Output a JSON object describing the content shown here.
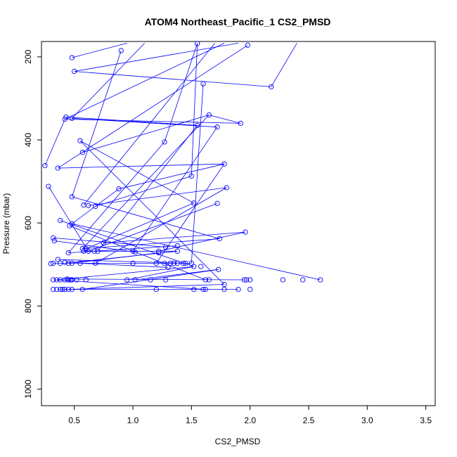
{
  "chart_data": {
    "type": "line",
    "title": "ATOM4 Northeast_Pacific_1 CS2_PMSD",
    "xlabel": "CS2_PMSD",
    "ylabel": "Pressure (mbar)",
    "xlim": [
      0.22,
      3.58
    ],
    "ylim": [
      1040,
      163
    ],
    "y_reversed": true,
    "x_ticks": [
      0.5,
      1.0,
      1.5,
      2.0,
      2.5,
      3.0,
      3.5
    ],
    "x_tick_labels": [
      "0.5",
      "1.0",
      "1.5",
      "2.0",
      "2.5",
      "3.0",
      "3.5"
    ],
    "y_ticks": [
      200,
      400,
      600,
      800,
      1000
    ],
    "y_tick_labels": [
      "200",
      "400",
      "600",
      "800",
      "1000"
    ],
    "grid": false,
    "legend": "none",
    "marker": "open-circle",
    "color": "#0000ff",
    "series": [
      {
        "name": "",
        "points": [
          [
            0.48,
            760
          ],
          [
            1.2,
            760
          ],
          [
            1.52,
            760
          ],
          [
            1.6,
            760
          ],
          [
            1.62,
            760
          ],
          [
            1.78,
            760
          ],
          [
            1.9,
            760
          ],
          [
            2.0,
            760
          ],
          [
            0.38,
            760
          ],
          [
            0.42,
            760
          ],
          [
            0.45,
            760
          ],
          [
            0.57,
            760
          ],
          [
            0.32,
            760
          ],
          [
            0.35,
            760
          ],
          [
            0.4,
            760
          ],
          [
            0.44,
            735
          ],
          [
            0.48,
            737
          ],
          [
            0.52,
            737
          ],
          [
            0.6,
            737
          ],
          [
            0.95,
            737
          ],
          [
            1.02,
            737
          ],
          [
            1.15,
            737
          ],
          [
            1.28,
            737
          ],
          [
            1.62,
            737
          ],
          [
            1.65,
            737
          ],
          [
            1.95,
            737
          ],
          [
            1.97,
            737
          ],
          [
            2.0,
            737
          ],
          [
            2.28,
            737
          ],
          [
            2.45,
            737
          ],
          [
            2.6,
            737
          ],
          [
            0.32,
            737
          ],
          [
            0.35,
            737
          ],
          [
            0.38,
            737
          ],
          [
            0.42,
            737
          ],
          [
            0.45,
            737
          ],
          [
            1.78,
            748
          ],
          [
            1.73,
            712
          ],
          [
            1.52,
            705
          ],
          [
            1.58,
            705
          ],
          [
            1.3,
            707
          ],
          [
            0.47,
            737
          ],
          [
            0.32,
            697
          ],
          [
            0.38,
            697
          ],
          [
            0.42,
            695
          ],
          [
            0.45,
            697
          ],
          [
            0.48,
            697
          ],
          [
            0.55,
            697
          ],
          [
            0.68,
            697
          ],
          [
            1.0,
            697
          ],
          [
            1.2,
            697
          ],
          [
            1.27,
            697
          ],
          [
            1.32,
            697
          ],
          [
            1.35,
            697
          ],
          [
            1.38,
            697
          ],
          [
            1.43,
            697
          ],
          [
            1.45,
            697
          ],
          [
            1.5,
            697
          ],
          [
            0.36,
            688
          ],
          [
            0.3,
            698
          ],
          [
            0.45,
            672
          ],
          [
            0.58,
            668
          ],
          [
            0.62,
            668
          ],
          [
            0.67,
            668
          ],
          [
            0.7,
            668
          ],
          [
            1.0,
            668
          ],
          [
            1.02,
            670
          ],
          [
            1.22,
            668
          ],
          [
            1.38,
            668
          ],
          [
            0.57,
            662
          ],
          [
            0.6,
            662
          ],
          [
            1.28,
            658
          ],
          [
            1.38,
            655
          ],
          [
            1.22,
            672
          ],
          [
            0.33,
            643
          ],
          [
            0.32,
            636
          ],
          [
            0.75,
            648
          ],
          [
            0.62,
            558
          ],
          [
            1.74,
            638
          ],
          [
            1.96,
            622
          ],
          [
            0.48,
            602
          ],
          [
            0.46,
            607
          ],
          [
            0.38,
            594
          ],
          [
            1.52,
            552
          ],
          [
            1.72,
            553
          ],
          [
            0.58,
            557
          ],
          [
            0.68,
            560
          ],
          [
            0.48,
            537
          ],
          [
            0.88,
            518
          ],
          [
            1.8,
            515
          ],
          [
            0.28,
            512
          ],
          [
            1.78,
            458
          ],
          [
            1.5,
            487
          ],
          [
            0.25,
            462
          ],
          [
            0.36,
            468
          ],
          [
            0.57,
            430
          ],
          [
            0.55,
            402
          ],
          [
            1.27,
            405
          ],
          [
            1.92,
            360
          ],
          [
            1.72,
            369
          ],
          [
            1.55,
            365
          ],
          [
            1.65,
            340
          ],
          [
            0.42,
            350
          ],
          [
            0.48,
            348
          ],
          [
            0.43,
            345
          ],
          [
            2.18,
            272
          ],
          [
            1.6,
            265
          ],
          [
            0.5,
            235
          ],
          [
            0.48,
            202
          ],
          [
            0.9,
            185
          ],
          [
            1.98,
            172
          ],
          [
            1.55,
            168
          ]
        ],
        "segments": [
          [
            [
              0.48,
              602
            ],
            [
              2.6,
              737
            ]
          ],
          [
            [
              0.44,
              735
            ],
            [
              1.95,
              737
            ]
          ],
          [
            [
              0.32,
              737
            ],
            [
              1.62,
              760
            ]
          ],
          [
            [
              0.38,
              760
            ],
            [
              1.9,
              760
            ]
          ],
          [
            [
              0.45,
              760
            ],
            [
              1.78,
              748
            ]
          ],
          [
            [
              0.57,
              760
            ],
            [
              1.73,
              712
            ]
          ],
          [
            [
              0.35,
              737
            ],
            [
              1.52,
              705
            ]
          ],
          [
            [
              0.32,
              697
            ],
            [
              1.5,
              697
            ]
          ],
          [
            [
              0.42,
              697
            ],
            [
              1.38,
              668
            ]
          ],
          [
            [
              0.45,
              672
            ],
            [
              1.38,
              655
            ]
          ],
          [
            [
              0.58,
              668
            ],
            [
              1.38,
              668
            ]
          ],
          [
            [
              0.48,
              697
            ],
            [
              1.22,
              672
            ]
          ],
          [
            [
              0.55,
              697
            ],
            [
              1.3,
              707
            ]
          ],
          [
            [
              0.36,
              688
            ],
            [
              1.45,
              697
            ]
          ],
          [
            [
              0.33,
              643
            ],
            [
              1.02,
              670
            ]
          ],
          [
            [
              0.32,
              636
            ],
            [
              1.28,
              658
            ]
          ],
          [
            [
              0.57,
              662
            ],
            [
              1.74,
              638
            ]
          ],
          [
            [
              0.75,
              648
            ],
            [
              1.96,
              622
            ]
          ],
          [
            [
              0.6,
              662
            ],
            [
              1.52,
              552
            ]
          ],
          [
            [
              0.62,
              668
            ],
            [
              1.72,
              553
            ]
          ],
          [
            [
              0.38,
              594
            ],
            [
              1.52,
              705
            ]
          ],
          [
            [
              0.46,
              607
            ],
            [
              1.62,
              737
            ]
          ],
          [
            [
              0.48,
              602
            ],
            [
              0.88,
              518
            ]
          ],
          [
            [
              0.62,
              558
            ],
            [
              1.8,
              515
            ]
          ],
          [
            [
              0.68,
              560
            ],
            [
              1.5,
              487
            ]
          ],
          [
            [
              0.28,
              512
            ],
            [
              0.62,
              668
            ]
          ],
          [
            [
              0.88,
              518
            ],
            [
              1.78,
              458
            ]
          ],
          [
            [
              0.36,
              468
            ],
            [
              1.78,
              458
            ]
          ],
          [
            [
              0.25,
              462
            ],
            [
              0.42,
              350
            ]
          ],
          [
            [
              0.42,
              350
            ],
            [
              1.92,
              360
            ]
          ],
          [
            [
              0.43,
              345
            ],
            [
              1.55,
              365
            ]
          ],
          [
            [
              0.48,
              348
            ],
            [
              1.72,
              369
            ]
          ],
          [
            [
              0.55,
              402
            ],
            [
              1.52,
              552
            ]
          ],
          [
            [
              0.57,
              430
            ],
            [
              1.65,
              340
            ]
          ],
          [
            [
              0.5,
              235
            ],
            [
              2.18,
              272
            ]
          ],
          [
            [
              0.48,
              202
            ],
            [
              0.95,
              167
            ]
          ],
          [
            [
              0.9,
              185
            ],
            [
              0.48,
              537
            ]
          ],
          [
            [
              1.98,
              172
            ],
            [
              0.36,
              468
            ]
          ],
          [
            [
              1.55,
              168
            ],
            [
              1.5,
              487
            ]
          ],
          [
            [
              1.6,
              265
            ],
            [
              1.5,
              697
            ]
          ],
          [
            [
              2.18,
              272
            ],
            [
              2.4,
              167
            ]
          ],
          [
            [
              0.48,
              348
            ],
            [
              1.1,
              167
            ]
          ],
          [
            [
              0.42,
              350
            ],
            [
              1.78,
              167
            ]
          ],
          [
            [
              0.45,
              672
            ],
            [
              1.27,
              405
            ]
          ],
          [
            [
              1.27,
              405
            ],
            [
              1.55,
              167
            ]
          ],
          [
            [
              0.5,
              235
            ],
            [
              1.9,
              167
            ]
          ],
          [
            [
              0.58,
              557
            ],
            [
              1.7,
              167
            ]
          ],
          [
            [
              0.57,
              662
            ],
            [
              1.65,
              340
            ]
          ],
          [
            [
              1.65,
              340
            ],
            [
              1.92,
              360
            ]
          ],
          [
            [
              0.68,
              697
            ],
            [
              1.8,
              515
            ]
          ],
          [
            [
              1.2,
              697
            ],
            [
              1.78,
              458
            ]
          ],
          [
            [
              0.55,
              402
            ],
            [
              1.78,
              748
            ]
          ],
          [
            [
              1.0,
              668
            ],
            [
              1.72,
              369
            ]
          ],
          [
            [
              0.7,
              668
            ],
            [
              1.55,
              365
            ]
          ],
          [
            [
              1.22,
              668
            ],
            [
              1.96,
              622
            ]
          ],
          [
            [
              0.48,
              537
            ],
            [
              1.74,
              638
            ]
          ],
          [
            [
              1.02,
              737
            ],
            [
              1.73,
              712
            ]
          ],
          [
            [
              0.95,
              737
            ],
            [
              1.52,
              705
            ]
          ]
        ]
      }
    ]
  }
}
